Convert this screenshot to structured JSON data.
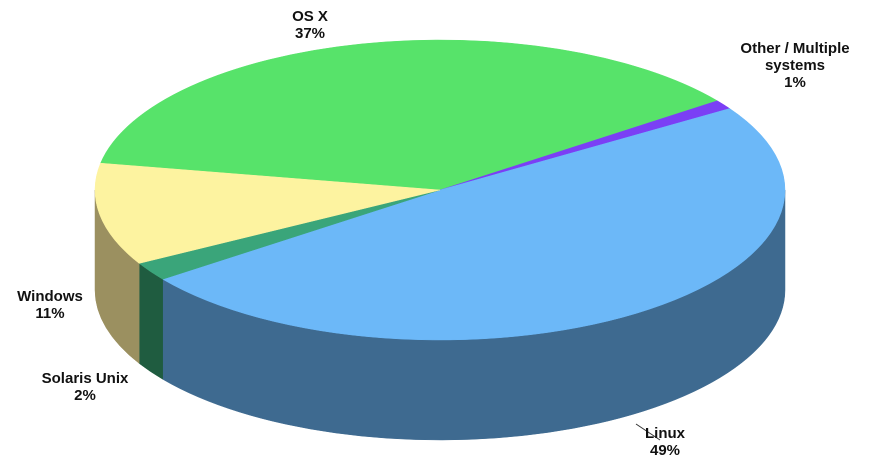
{
  "chart_data": {
    "type": "pie3d",
    "categories": [
      "OS X",
      "Other / Multiple systems",
      "Linux",
      "Solaris Unix",
      "Windows"
    ],
    "values": [
      37,
      1,
      49,
      2,
      11
    ],
    "value_labels": [
      "37%",
      "1%",
      "49%",
      "2%",
      "11%"
    ],
    "colors": [
      "#57e36a",
      "#7b3ff5",
      "#6cb8f8",
      "#3aa57a",
      "#fdf3a0"
    ],
    "side_colors": [
      "#3a9a48",
      "#4f27a0",
      "#3e6a90",
      "#1f5c40",
      "#9b9060"
    ]
  }
}
